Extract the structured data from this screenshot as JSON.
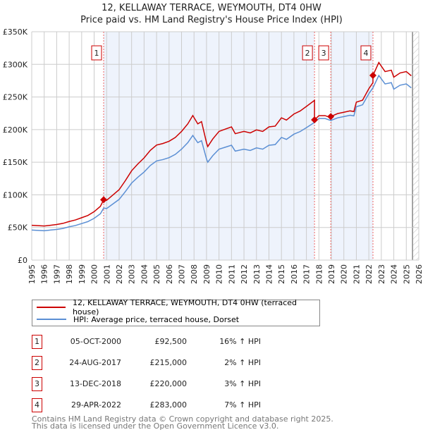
{
  "title_line1": "12, KELLAWAY TERRACE, WEYMOUTH, DT4 0HW",
  "title_line2": "Price paid vs. HM Land Registry's House Price Index (HPI)",
  "colors": {
    "property": "#cc0000",
    "hpi": "#5b8fd4",
    "shade": "#eef3fc"
  },
  "chart_data": {
    "type": "line",
    "title": "12, KELLAWAY TERRACE, WEYMOUTH, DT4 0HW - Price paid vs. HM Land Registry's House Price Index (HPI)",
    "xlim": [
      1995,
      2026
    ],
    "ylim": [
      0,
      350000
    ],
    "y_ticks": [
      {
        "v": 0,
        "label": "£0"
      },
      {
        "v": 50000,
        "label": "£50K"
      },
      {
        "v": 100000,
        "label": "£100K"
      },
      {
        "v": 150000,
        "label": "£150K"
      },
      {
        "v": 200000,
        "label": "£200K"
      },
      {
        "v": 250000,
        "label": "£250K"
      },
      {
        "v": 300000,
        "label": "£300K"
      },
      {
        "v": 350000,
        "label": "£350K"
      }
    ],
    "x_ticks": [
      "1995",
      "1996",
      "1997",
      "1998",
      "1999",
      "2000",
      "2001",
      "2002",
      "2003",
      "2004",
      "2005",
      "2006",
      "2007",
      "2008",
      "2009",
      "2010",
      "2011",
      "2012",
      "2013",
      "2014",
      "2015",
      "2016",
      "2017",
      "2018",
      "2019",
      "2020",
      "2021",
      "2022",
      "2023",
      "2024",
      "2025",
      "2026"
    ],
    "grid": true,
    "hpi_series": {
      "name": "HPI: Average price, terraced house, Dorset",
      "x": [
        1995,
        1995.5,
        1996,
        1996.5,
        1997,
        1997.5,
        1998,
        1998.5,
        1999,
        1999.5,
        2000,
        2000.5,
        2000.76,
        2001,
        2001.5,
        2002,
        2002.5,
        2003,
        2003.5,
        2004,
        2004.5,
        2005,
        2005.5,
        2006,
        2006.5,
        2007,
        2007.5,
        2007.9,
        2008.3,
        2008.6,
        2009,
        2009.1,
        2009.5,
        2010,
        2010.5,
        2011,
        2011.3,
        2012,
        2012.5,
        2013,
        2013.5,
        2014,
        2014.5,
        2015,
        2015.4,
        2016,
        2016.5,
        2017,
        2017.65,
        2018,
        2018.5,
        2018.95,
        2019.5,
        2020,
        2020.5,
        2020.8,
        2021,
        2021.5,
        2022,
        2022.33,
        2022.8,
        2023.3,
        2023.8,
        2024,
        2024.5,
        2025,
        2025.4
      ],
      "y": [
        46,
        45.5,
        45,
        46,
        47,
        48.5,
        51,
        53,
        56,
        59,
        64,
        71,
        79.7,
        79,
        86,
        93,
        105,
        118,
        127,
        135,
        145,
        152,
        154,
        157,
        162,
        170,
        180,
        191,
        180,
        183,
        155,
        150,
        160,
        170,
        173,
        176,
        167,
        170,
        168,
        172,
        170,
        176,
        177,
        188,
        185,
        193,
        197,
        203,
        211,
        217,
        217,
        214,
        218,
        220,
        222,
        221,
        235,
        238,
        255,
        264,
        283,
        270,
        272,
        262,
        268,
        270,
        264
      ]
    },
    "property_series": {
      "name": "12, KELLAWAY TERRACE, WEYMOUTH, DT4 0HW (terraced house)",
      "note": "HPI-indexed from last sale",
      "factors": [
        {
          "until": 2017.65,
          "f": 1.16
        },
        {
          "until": 2018.95,
          "f": 1.02
        },
        {
          "until": 2022.33,
          "f": 1.03
        },
        {
          "until": 2026,
          "f": 1.07
        }
      ]
    },
    "sales": [
      {
        "n": "1",
        "x": 2000.76,
        "date": "05-OCT-2000",
        "price": 92500,
        "price_label": "£92,500",
        "hpi": "16% ↑ HPI"
      },
      {
        "n": "2",
        "x": 2017.65,
        "date": "24-AUG-2017",
        "price": 215000,
        "price_label": "£215,000",
        "hpi": "2% ↑ HPI"
      },
      {
        "n": "3",
        "x": 2018.95,
        "date": "13-DEC-2018",
        "price": 220000,
        "price_label": "£220,000",
        "hpi": "3% ↑ HPI"
      },
      {
        "n": "4",
        "x": 2022.33,
        "date": "29-APR-2022",
        "price": 283000,
        "price_label": "£283,000",
        "hpi": "7% ↑ HPI"
      }
    ],
    "forecast_from": 2025.5,
    "legend_position": "below"
  },
  "legend": {
    "property": "12, KELLAWAY TERRACE, WEYMOUTH, DT4 0HW (terraced house)",
    "hpi": "HPI: Average price, terraced house, Dorset"
  },
  "footer": {
    "line1": "Contains HM Land Registry data © Crown copyright and database right 2025.",
    "line2": "This data is licensed under the Open Government Licence v3.0."
  }
}
